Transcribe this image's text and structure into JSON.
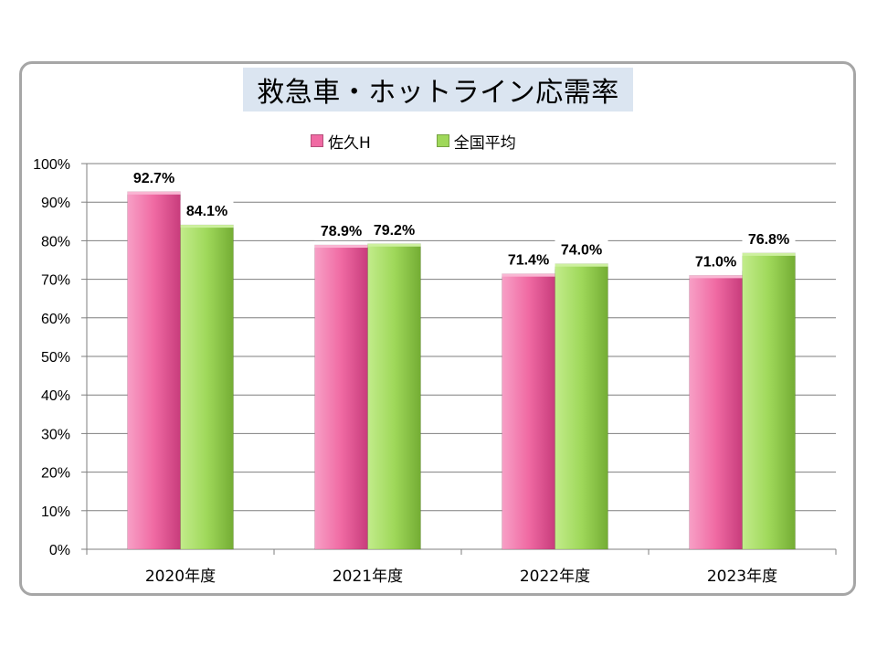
{
  "chart_data": {
    "type": "bar",
    "title": "救急車・ホットライン応需率",
    "categories": [
      "2020年度",
      "2021年度",
      "2022年度",
      "2023年度"
    ],
    "series": [
      {
        "name": "佐久H",
        "color": "#f06aa3",
        "values": [
          92.7,
          78.9,
          71.4,
          71.0
        ],
        "labels": [
          "92.7%",
          "78.9%",
          "71.4%",
          "71.0%"
        ]
      },
      {
        "name": "全国平均",
        "color": "#9fd85a",
        "values": [
          84.1,
          79.2,
          74.0,
          76.8
        ],
        "labels": [
          "84.1%",
          "79.2%",
          "74.0%",
          "76.8%"
        ]
      }
    ],
    "y_ticks": [
      "0%",
      "10%",
      "20%",
      "30%",
      "40%",
      "50%",
      "60%",
      "70%",
      "80%",
      "90%",
      "100%"
    ],
    "ylim": [
      0,
      100
    ],
    "grid": true,
    "legend_position": "top"
  }
}
